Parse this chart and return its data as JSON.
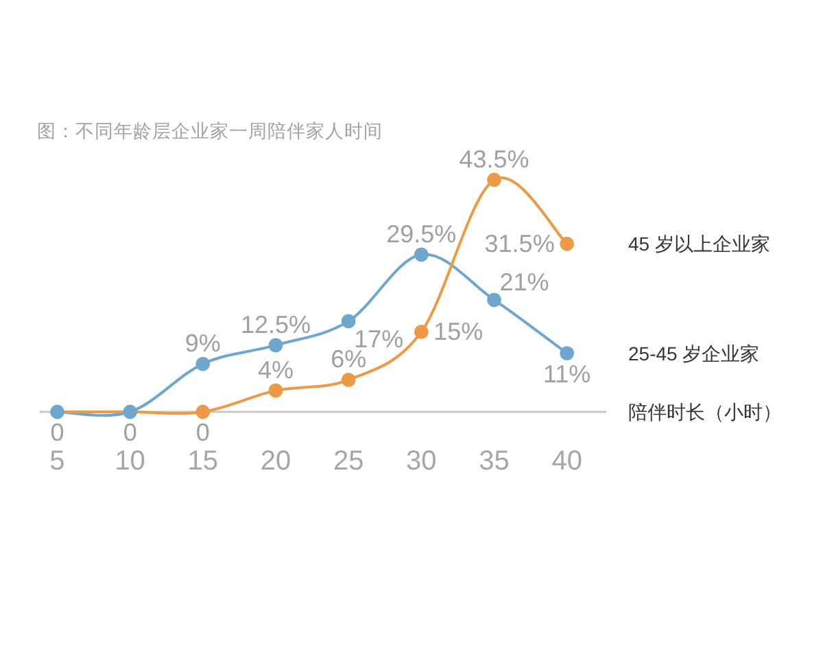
{
  "chart_data": {
    "type": "line",
    "title": "图：不同年龄层企业家一周陪伴家人时间",
    "xlabel": "陪伴时长（小时）",
    "x": [
      5,
      10,
      15,
      20,
      25,
      30,
      35,
      40
    ],
    "xlim": [
      3.8,
      42.7
    ],
    "xticks": [
      5,
      10,
      15,
      20,
      25,
      30,
      35,
      40
    ],
    "tick_labels": "x",
    "marker": "circle",
    "line_style": "solid",
    "series": [
      {
        "name": "25-45 岁企业家",
        "color": "#6fa6cf",
        "values": [
          0,
          0,
          9,
          12.5,
          17,
          29.5,
          21,
          11
        ],
        "value_labels": [
          "0",
          "0",
          "9%",
          "12.5%",
          "17%",
          "29.5%",
          "21%",
          "11%"
        ]
      },
      {
        "name": "45 岁以上企业家",
        "color": "#ec9a45",
        "values": [
          0,
          0,
          0,
          4,
          6,
          15,
          43.5,
          31.5
        ],
        "value_labels": [
          null,
          null,
          "0",
          "4%",
          "6%",
          "15%",
          "43.5%",
          "31.5%"
        ]
      }
    ]
  }
}
